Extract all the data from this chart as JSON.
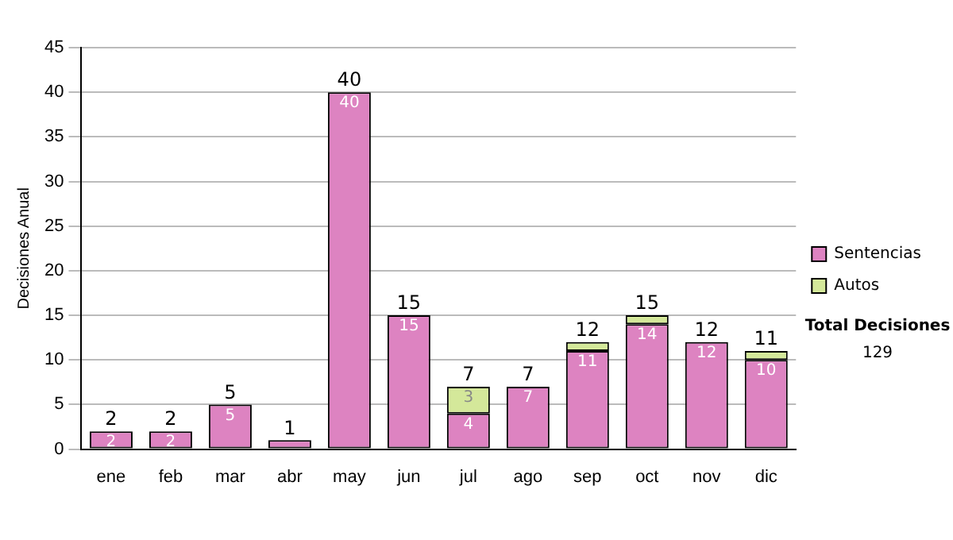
{
  "chart_data": {
    "type": "bar",
    "stacked": true,
    "ylabel": "Decisiones Anual",
    "categories": [
      "ene",
      "feb",
      "mar",
      "abr",
      "may",
      "jun",
      "jul",
      "ago",
      "sep",
      "oct",
      "nov",
      "dic"
    ],
    "series": [
      {
        "name": "Sentencias",
        "color": "#dd83c1",
        "values": [
          2,
          2,
          5,
          1,
          40,
          15,
          4,
          7,
          11,
          14,
          12,
          10
        ],
        "value_labels": [
          "2",
          "2",
          "5",
          null,
          "40",
          "15",
          "4",
          "7",
          "11",
          "14",
          "12",
          "10"
        ]
      },
      {
        "name": "Autos",
        "color": "#d4e89a",
        "values": [
          0,
          0,
          0,
          0,
          0,
          0,
          3,
          0,
          1,
          1,
          0,
          1
        ],
        "value_labels": [
          null,
          null,
          null,
          null,
          null,
          null,
          "3",
          null,
          null,
          null,
          null,
          null
        ]
      }
    ],
    "totals": [
      "2",
      "2",
      "5",
      "1",
      "40",
      "15",
      "7",
      "7",
      "12",
      "15",
      "12",
      "11"
    ],
    "ylim": [
      0,
      45
    ],
    "yticks": [
      0,
      5,
      10,
      15,
      20,
      25,
      30,
      35,
      40,
      45
    ],
    "grid": "y",
    "legend": "right",
    "annotations": [
      "Total Decisiones",
      "129"
    ]
  }
}
